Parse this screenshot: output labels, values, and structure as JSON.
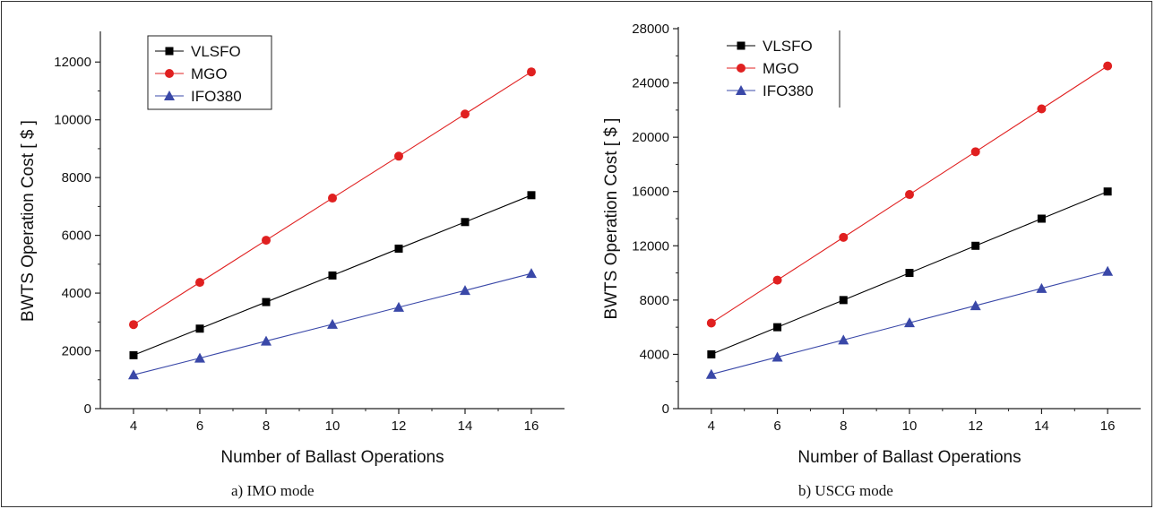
{
  "chart_data": [
    {
      "type": "line",
      "caption": "a) IMO mode",
      "xlabel": "Number of Ballast Operations",
      "ylabel": "BWTS Operation Cost [ $ ]",
      "x": [
        4,
        6,
        8,
        10,
        12,
        14,
        16
      ],
      "xlim": [
        3,
        17
      ],
      "ylim": [
        0,
        13000
      ],
      "xticks": [
        4,
        6,
        8,
        10,
        12,
        14,
        16
      ],
      "yticks": [
        0,
        2000,
        4000,
        6000,
        8000,
        10000,
        12000
      ],
      "legend_position": "top-left",
      "series": [
        {
          "name": "VLSFO",
          "color": "#000000",
          "marker": "square",
          "values": [
            1850,
            2770,
            3690,
            4610,
            5540,
            6460,
            7390
          ]
        },
        {
          "name": "MGO",
          "color": "#e02020",
          "marker": "circle",
          "values": [
            2910,
            4370,
            5830,
            7290,
            8740,
            10200,
            11660
          ]
        },
        {
          "name": "IFO380",
          "color": "#3a48a8",
          "marker": "triangle",
          "values": [
            1170,
            1750,
            2340,
            2920,
            3510,
            4090,
            4680
          ]
        }
      ]
    },
    {
      "type": "line",
      "caption": "b) USCG mode",
      "xlabel": "Number of Ballast Operations",
      "ylabel": "BWTS Operation Cost [ $ ]",
      "x": [
        4,
        6,
        8,
        10,
        12,
        14,
        16
      ],
      "xlim": [
        3,
        17
      ],
      "ylim": [
        0,
        28000
      ],
      "xticks": [
        4,
        6,
        8,
        10,
        12,
        14,
        16
      ],
      "yticks": [
        0,
        4000,
        8000,
        12000,
        16000,
        20000,
        24000,
        28000
      ],
      "legend_position": "top-left",
      "series": [
        {
          "name": "VLSFO",
          "color": "#000000",
          "marker": "square",
          "values": [
            4000,
            6000,
            8000,
            10000,
            12000,
            14000,
            16000
          ]
        },
        {
          "name": "MGO",
          "color": "#e02020",
          "marker": "circle",
          "values": [
            6310,
            9470,
            12620,
            15780,
            18930,
            22090,
            25250
          ]
        },
        {
          "name": "IFO380",
          "color": "#3a48a8",
          "marker": "triangle",
          "values": [
            2530,
            3800,
            5060,
            6330,
            7590,
            8860,
            10120
          ]
        }
      ]
    }
  ]
}
